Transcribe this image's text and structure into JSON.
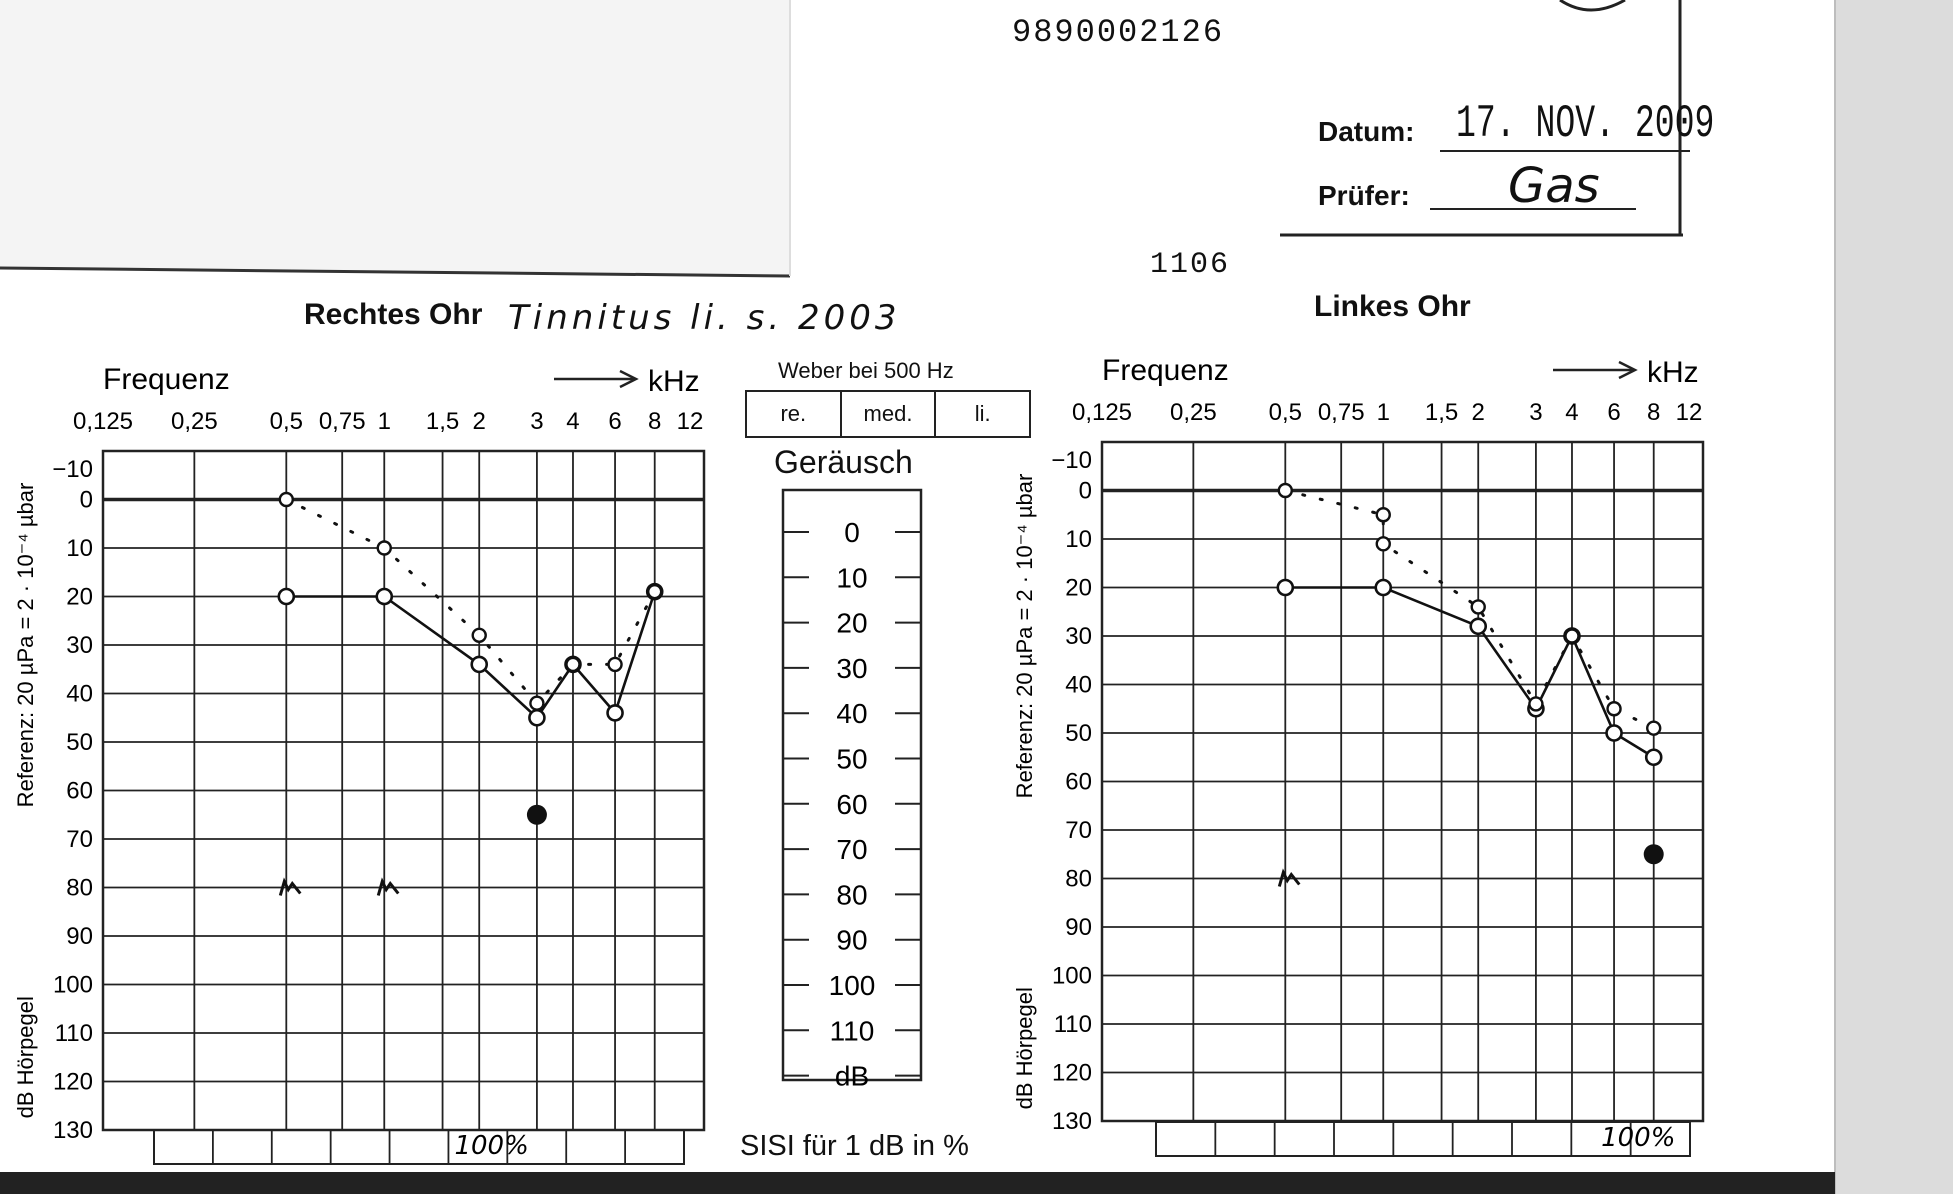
{
  "header": {
    "patient_number": "9890002126",
    "code": "1106",
    "date_label": "Datum:",
    "date_value": "17. NOV. 2009",
    "examiner_label": "Prüfer:",
    "examiner_value": "Gas",
    "note": "Tinnitus li. s. 2003"
  },
  "weber": {
    "title": "Weber bei 500 Hz",
    "options": [
      "re.",
      "med.",
      "li."
    ]
  },
  "noise": {
    "title": "Geräusch",
    "scale": [
      "0",
      "10",
      "20",
      "30",
      "40",
      "50",
      "60",
      "70",
      "80",
      "90",
      "100",
      "110"
    ],
    "unit": "dB"
  },
  "sisi": {
    "label": "SISI für 1 dB in %",
    "right_value": "100%",
    "left_value": "100%"
  },
  "chart_data": [
    {
      "type": "line",
      "title": "Rechtes Ohr",
      "xlabel": "Frequenz",
      "x_unit_label": "kHz",
      "ylabel_top": "Referenz: 20 µPa = 2 · 10⁻⁴ µbar",
      "ylabel_bottom": "dB Hörpegel",
      "x_ticks": [
        "0,125",
        "0,25",
        "0,5",
        "0,75",
        "1",
        "1,5",
        "2",
        "3",
        "4",
        "6",
        "8",
        "12"
      ],
      "y_ticks": [
        "−10",
        "0",
        "10",
        "20",
        "30",
        "40",
        "50",
        "60",
        "70",
        "80",
        "90",
        "100",
        "110",
        "120",
        "130"
      ],
      "ylim": [
        -10,
        130
      ],
      "y_inverted": true,
      "series": [
        {
          "kind": "air",
          "x": [
            "0,5",
            "1",
            "2",
            "3",
            "4",
            "6",
            "8"
          ],
          "y": [
            20,
            20,
            34,
            45,
            34,
            44,
            19
          ]
        },
        {
          "kind": "bone",
          "x": [
            "0,5",
            "1",
            "2",
            "3",
            "4",
            "6",
            "8"
          ],
          "y": [
            0,
            10,
            28,
            42,
            34,
            34,
            19
          ]
        },
        {
          "kind": "marker",
          "x": [
            "3"
          ],
          "y": [
            65
          ]
        },
        {
          "kind": "noise",
          "x": [
            "0,5",
            "1"
          ],
          "y": [
            80,
            80
          ]
        }
      ]
    },
    {
      "type": "line",
      "title": "Linkes Ohr",
      "xlabel": "Frequenz",
      "x_unit_label": "kHz",
      "ylabel_top": "Referenz: 20 µPa = 2 · 10⁻⁴ µbar",
      "ylabel_bottom": "dB Hörpegel",
      "x_ticks": [
        "0,125",
        "0,25",
        "0,5",
        "0,75",
        "1",
        "1,5",
        "2",
        "3",
        "4",
        "6",
        "8",
        "12"
      ],
      "y_ticks": [
        "−10",
        "0",
        "10",
        "20",
        "30",
        "40",
        "50",
        "60",
        "70",
        "80",
        "90",
        "100",
        "110",
        "120",
        "130"
      ],
      "ylim": [
        -10,
        130
      ],
      "y_inverted": true,
      "series": [
        {
          "kind": "air",
          "x": [
            "0,5",
            "1",
            "2",
            "3",
            "4",
            "6",
            "8"
          ],
          "y": [
            20,
            20,
            28,
            45,
            30,
            50,
            55
          ]
        },
        {
          "kind": "bone",
          "x": [
            "0,5",
            "1",
            "1",
            "2",
            "3",
            "4",
            "6",
            "8"
          ],
          "y": [
            0,
            5,
            11,
            24,
            44,
            30,
            45,
            49
          ]
        },
        {
          "kind": "marker",
          "x": [
            "8"
          ],
          "y": [
            75
          ]
        },
        {
          "kind": "noise",
          "x": [
            "0,5"
          ],
          "y": [
            80
          ]
        }
      ]
    }
  ]
}
